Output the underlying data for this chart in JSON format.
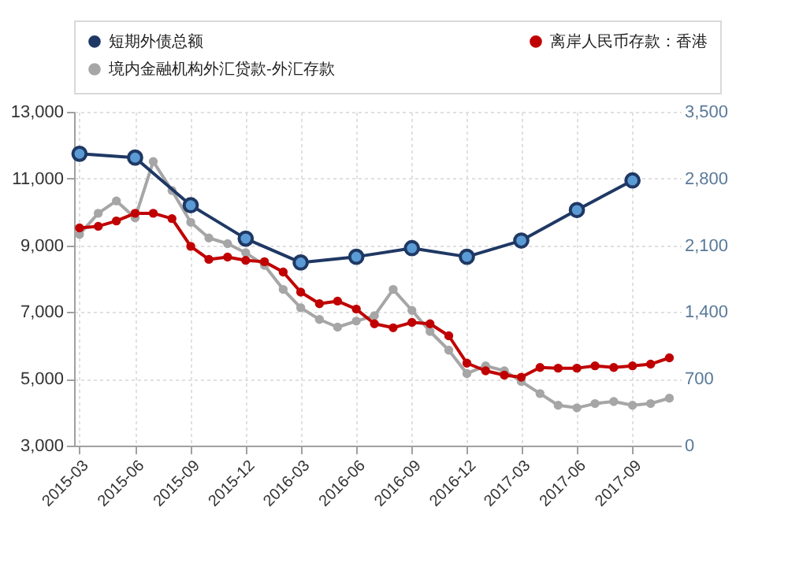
{
  "chart_data": {
    "type": "line",
    "x": [
      "2015-03",
      "2015-04",
      "2015-05",
      "2015-06",
      "2015-07",
      "2015-08",
      "2015-09",
      "2015-10",
      "2015-11",
      "2015-12",
      "2016-01",
      "2016-02",
      "2016-03",
      "2016-04",
      "2016-05",
      "2016-06",
      "2016-07",
      "2016-08",
      "2016-09",
      "2016-10",
      "2016-11",
      "2016-12",
      "2017-01",
      "2017-02",
      "2017-03",
      "2017-04",
      "2017-05",
      "2017-06",
      "2017-07",
      "2017-08",
      "2017-09",
      "2017-10",
      "2017-11"
    ],
    "series": [
      {
        "name": "短期外债总额",
        "color": "#1f3864",
        "axis": "y2",
        "x": [
          "2015-03",
          "2015-06",
          "2015-09",
          "2015-12",
          "2016-03",
          "2016-06",
          "2016-09",
          "2016-12",
          "2017-03",
          "2017-06",
          "2017-09"
        ],
        "values": [
          3060,
          3020,
          2520,
          2170,
          1920,
          1980,
          2070,
          1980,
          2150,
          2470,
          2780
        ]
      },
      {
        "name": "离岸人民币存款：香港",
        "color": "#c00000",
        "values": [
          9520,
          9570,
          9730,
          9960,
          9960,
          9800,
          8970,
          8580,
          8650,
          8550,
          8510,
          8200,
          7600,
          7250,
          7330,
          7090,
          6650,
          6530,
          6690,
          6650,
          6290,
          5470,
          5240,
          5110,
          5050,
          5340,
          5320,
          5320,
          5390,
          5340,
          5390,
          5440,
          5630
        ]
      },
      {
        "name": "境内金融机构外汇贷款-外汇存款",
        "color": "#a6a6a6",
        "values": [
          9330,
          9960,
          10330,
          9820,
          11510,
          10640,
          9690,
          9220,
          9050,
          8780,
          8400,
          7680,
          7130,
          6780,
          6550,
          6730,
          6890,
          7680,
          7050,
          6420,
          5860,
          5160,
          5390,
          5240,
          4920,
          4560,
          4210,
          4130,
          4260,
          4320,
          4210,
          4260,
          4420
        ]
      }
    ],
    "xlim": [
      "2015-02-20",
      "2017-11-20"
    ],
    "xticks": [
      "2015-03",
      "2015-06",
      "2015-09",
      "2015-12",
      "2016-03",
      "2016-06",
      "2016-09",
      "2016-12",
      "2017-03",
      "2017-06",
      "2017-09"
    ],
    "ylim": [
      3000,
      13000
    ],
    "yticks": [
      {
        "value": 3000,
        "label": "3,000"
      },
      {
        "value": 5000,
        "label": "5,000"
      },
      {
        "value": 7000,
        "label": "7,000"
      },
      {
        "value": 9000,
        "label": "9,000"
      },
      {
        "value": 11000,
        "label": "11,000"
      },
      {
        "value": 13000,
        "label": "13,000"
      }
    ],
    "y2lim": [
      0,
      3500
    ],
    "y2ticks": [
      {
        "value": 0,
        "label": "0"
      },
      {
        "value": 700,
        "label": "700"
      },
      {
        "value": 1400,
        "label": "1,400"
      },
      {
        "value": 2100,
        "label": "2,100"
      },
      {
        "value": 2800,
        "label": "2,800"
      },
      {
        "value": 3500,
        "label": "3,500"
      }
    ],
    "grid": true,
    "legend": "top",
    "marker": "circle"
  }
}
